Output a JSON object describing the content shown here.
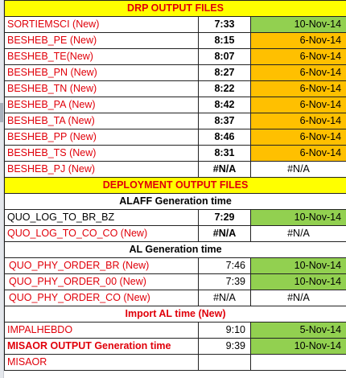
{
  "colors": {
    "header_fill": "#ffff00",
    "header_text": "#e0000a",
    "green": "#92d050",
    "orange": "#ffc000"
  },
  "sections": {
    "drp_title": "DRP OUTPUT FILES",
    "deploy_title": "DEPLOYMENT OUTPUT FILES",
    "alaff_title": "ALAFF Generation time",
    "al_title": "AL Generation time",
    "import_title": "Import AL time (New)"
  },
  "drp_rows": [
    {
      "label": "SORTIEMSCI (New)",
      "time": "7:33",
      "date": "10-Nov-14",
      "fill": "green"
    },
    {
      "label": "BESHEB_PE (New)",
      "time": "8:15",
      "date": "6-Nov-14",
      "fill": "orange"
    },
    {
      "label": "BESHEB_TE(New)",
      "time": "8:07",
      "date": "6-Nov-14",
      "fill": "orange"
    },
    {
      "label": "BESHEB_PN (New)",
      "time": "8:27",
      "date": "6-Nov-14",
      "fill": "orange"
    },
    {
      "label": "BESHEB_TN (New)",
      "time": "8:22",
      "date": "6-Nov-14",
      "fill": "orange"
    },
    {
      "label": "BESHEB_PA (New)",
      "time": "8:42",
      "date": "6-Nov-14",
      "fill": "orange"
    },
    {
      "label": "BESHEB_TA (New)",
      "time": "8:37",
      "date": "6-Nov-14",
      "fill": "orange"
    },
    {
      "label": "BESHEB_PP (New)",
      "time": "8:46",
      "date": "6-Nov-14",
      "fill": "orange"
    },
    {
      "label": "BESHEB_TS (New)",
      "time": "8:31",
      "date": "6-Nov-14",
      "fill": "orange"
    },
    {
      "label": "BESHEB_PJ (New)",
      "time": "#N/A",
      "date": "#N/A",
      "fill": "none"
    }
  ],
  "alaff_rows": [
    {
      "label": "QUO_LOG_TO_BR_BZ",
      "time": "7:29",
      "date": "10-Nov-14",
      "fill": "green"
    },
    {
      "label": "QUO_LOG_TO_CO_CO (New)",
      "time": "#N/A",
      "date": "#N/A",
      "fill": "none"
    }
  ],
  "al_rows": [
    {
      "label": "QUO_PHY_ORDER_BR (New)",
      "time": "7:46",
      "date": "10-Nov-14",
      "fill": "green"
    },
    {
      "label": "QUO_PHY_ORDER_00 (New)",
      "time": "7:39",
      "date": "10-Nov-14",
      "fill": "green"
    },
    {
      "label": "QUO_PHY_ORDER_CO (New)",
      "time": "#N/A",
      "date": "#N/A",
      "fill": "none"
    }
  ],
  "import_rows": [
    {
      "label": "IMPALHEBDO",
      "time": "9:10",
      "date": "5-Nov-14",
      "fill": "green"
    },
    {
      "label": "MISAOR OUTPUT Generation time",
      "time": "9:39",
      "date": "10-Nov-14",
      "fill": "green"
    }
  ],
  "last_row": {
    "label": "MISAOR"
  }
}
